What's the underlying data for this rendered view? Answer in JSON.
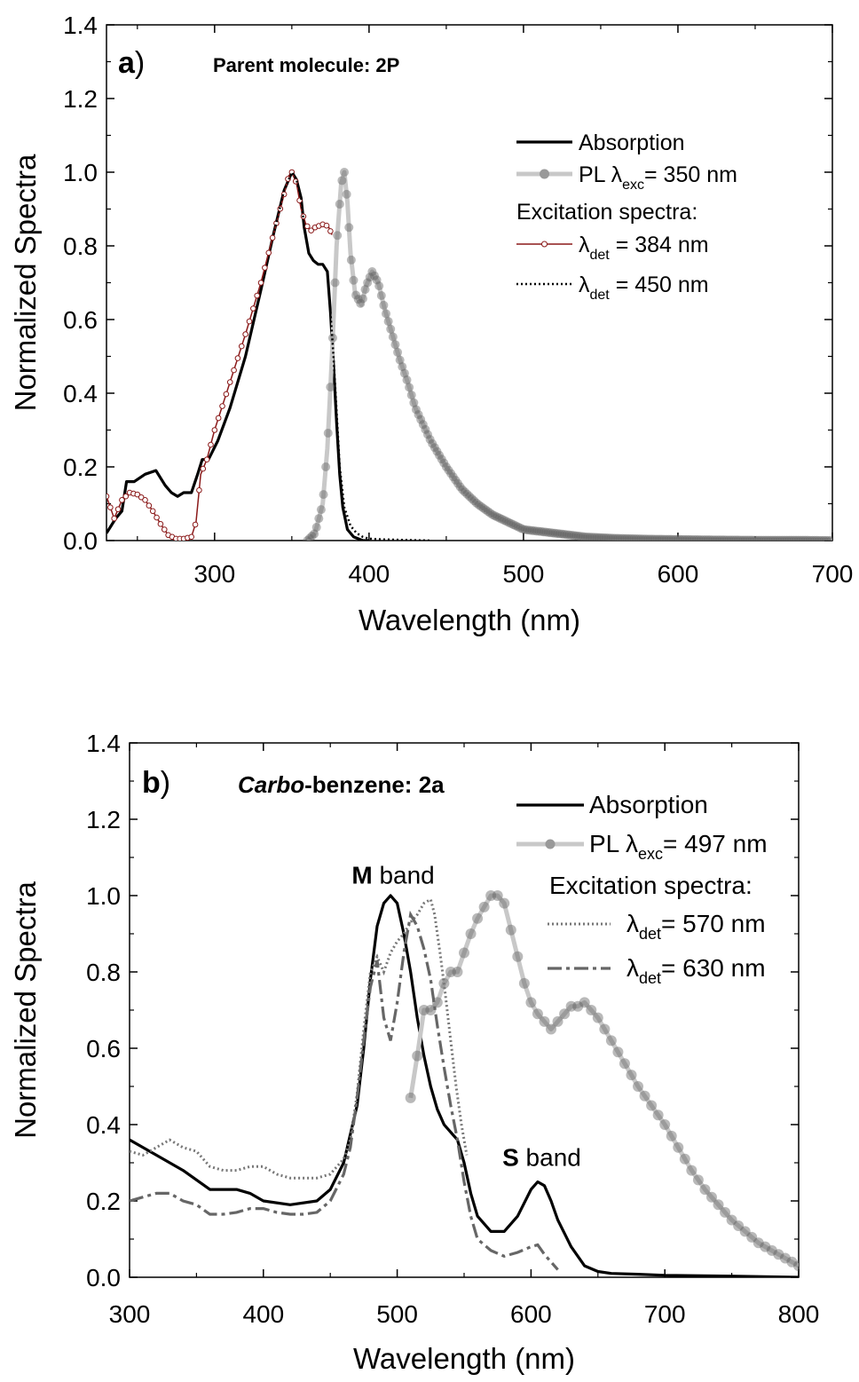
{
  "chart_data": [
    {
      "type": "line",
      "panel_label": "a",
      "subtitle": "Parent molecule: 2P",
      "xlabel": "Wavelength (nm)",
      "ylabel": "Normalized Spectra",
      "xlim": [
        230,
        700
      ],
      "ylim": [
        0,
        1.4
      ],
      "x_ticks": [
        "300",
        "400",
        "500",
        "600",
        "700"
      ],
      "y_ticks": [
        "0.0",
        "0.2",
        "0.4",
        "0.6",
        "0.8",
        "1.0",
        "1.2",
        "1.4"
      ],
      "legend_position": "top-right",
      "legend_heading": "Excitation spectra:",
      "series": [
        {
          "name": "Absorption",
          "style": "solid-black",
          "x": [
            230,
            236,
            240,
            243,
            248,
            255,
            262,
            268,
            272,
            276,
            280,
            285,
            289,
            292,
            296,
            302,
            310,
            320,
            330,
            338,
            345,
            350,
            353,
            356,
            358,
            361,
            364,
            367,
            370,
            373,
            375,
            377,
            379,
            381,
            383,
            386,
            390,
            396,
            400
          ],
          "y": [
            0.02,
            0.06,
            0.08,
            0.16,
            0.16,
            0.18,
            0.19,
            0.15,
            0.13,
            0.12,
            0.13,
            0.13,
            0.18,
            0.22,
            0.22,
            0.27,
            0.36,
            0.5,
            0.68,
            0.83,
            0.95,
            1.0,
            0.98,
            0.93,
            0.85,
            0.78,
            0.76,
            0.75,
            0.75,
            0.73,
            0.62,
            0.48,
            0.32,
            0.18,
            0.09,
            0.03,
            0.01,
            0.0,
            0.0
          ]
        },
        {
          "name": "PL",
          "label_prefix": "PL ",
          "label_lambda": "λ",
          "label_sub": "exc",
          "label_suffix": "= 350 nm",
          "style": "grey-dots",
          "x": [
            360,
            365,
            370,
            373,
            376,
            379,
            382,
            384,
            386,
            388,
            391,
            395,
            398,
            402,
            406,
            410,
            415,
            420,
            425,
            430,
            440,
            450,
            460,
            470,
            480,
            490,
            500,
            510,
            520,
            530,
            540,
            550,
            560,
            580,
            600,
            620,
            650,
            680,
            700
          ],
          "y": [
            0.0,
            0.02,
            0.1,
            0.25,
            0.5,
            0.8,
            0.97,
            1.0,
            0.92,
            0.78,
            0.67,
            0.64,
            0.69,
            0.73,
            0.7,
            0.63,
            0.56,
            0.49,
            0.43,
            0.36,
            0.27,
            0.2,
            0.14,
            0.1,
            0.07,
            0.05,
            0.03,
            0.025,
            0.02,
            0.015,
            0.01,
            0.008,
            0.006,
            0.004,
            0.003,
            0.002,
            0.001,
            0.001,
            0.0
          ]
        },
        {
          "name": "λdet = 384 nm",
          "label_lambda": "λ",
          "label_sub": "det",
          "label_suffix": " = 384 nm",
          "style": "red-line-open-circles",
          "x": [
            230,
            235,
            240,
            245,
            250,
            255,
            260,
            265,
            270,
            275,
            280,
            285,
            288,
            291,
            295,
            300,
            310,
            320,
            330,
            338,
            345,
            348,
            350,
            353,
            356,
            359,
            362,
            365,
            368,
            371,
            374,
            376
          ],
          "y": [
            0.12,
            0.06,
            0.11,
            0.13,
            0.125,
            0.11,
            0.08,
            0.045,
            0.015,
            0.005,
            0.005,
            0.01,
            0.05,
            0.18,
            0.22,
            0.3,
            0.43,
            0.56,
            0.7,
            0.83,
            0.94,
            0.99,
            1.0,
            0.97,
            0.9,
            0.86,
            0.84,
            0.85,
            0.855,
            0.86,
            0.85,
            0.83
          ]
        },
        {
          "name": "λdet = 450 nm",
          "label_lambda": "λ",
          "label_sub": "det",
          "label_suffix": " = 450 nm",
          "style": "dotted-black",
          "x": [
            338,
            345,
            350,
            353,
            356,
            358,
            361,
            364,
            367,
            370,
            373,
            375,
            377,
            379,
            381,
            384,
            388,
            392,
            396,
            400,
            410,
            420,
            430,
            440
          ],
          "y": [
            0.83,
            0.95,
            1.0,
            0.98,
            0.93,
            0.85,
            0.78,
            0.76,
            0.75,
            0.75,
            0.73,
            0.62,
            0.5,
            0.35,
            0.2,
            0.09,
            0.04,
            0.02,
            0.01,
            0.005,
            0.003,
            0.002,
            0.001,
            0.0
          ]
        }
      ]
    },
    {
      "type": "line",
      "panel_label": "b",
      "subtitle_italic": "Carbo",
      "subtitle_rest": "-benzene: 2a",
      "xlabel": "Wavelength (nm)",
      "ylabel": "Normalized Spectra",
      "xlim": [
        300,
        800
      ],
      "ylim": [
        0,
        1.4
      ],
      "x_ticks": [
        "300",
        "400",
        "500",
        "600",
        "700",
        "800"
      ],
      "y_ticks": [
        "0.0",
        "0.2",
        "0.4",
        "0.6",
        "0.8",
        "1.0",
        "1.2",
        "1.4"
      ],
      "legend_position": "top-right",
      "legend_heading": "Excitation spectra:",
      "annotations": [
        {
          "bold": "M",
          "rest": " band",
          "x": 497,
          "y": 1.05
        },
        {
          "bold": "S",
          "rest": " band",
          "x": 608,
          "y": 0.31
        }
      ],
      "series": [
        {
          "name": "Absorption",
          "style": "solid-black",
          "x": [
            300,
            320,
            340,
            360,
            380,
            390,
            400,
            420,
            440,
            450,
            460,
            470,
            475,
            480,
            485,
            490,
            495,
            500,
            505,
            510,
            515,
            520,
            525,
            530,
            535,
            540,
            545,
            550,
            555,
            560,
            570,
            580,
            590,
            600,
            605,
            610,
            615,
            620,
            630,
            640,
            650,
            660,
            680,
            700,
            750,
            800
          ],
          "y": [
            0.36,
            0.32,
            0.28,
            0.23,
            0.23,
            0.22,
            0.2,
            0.19,
            0.2,
            0.23,
            0.3,
            0.45,
            0.6,
            0.78,
            0.92,
            0.98,
            1.0,
            0.98,
            0.9,
            0.8,
            0.68,
            0.58,
            0.5,
            0.44,
            0.4,
            0.38,
            0.36,
            0.3,
            0.22,
            0.16,
            0.12,
            0.12,
            0.16,
            0.23,
            0.25,
            0.24,
            0.2,
            0.15,
            0.08,
            0.03,
            0.015,
            0.01,
            0.008,
            0.005,
            0.003,
            0.0
          ]
        },
        {
          "name": "PL",
          "label_prefix": "PL ",
          "label_lambda": "λ",
          "label_sub": "exc",
          "label_suffix": "= 497 nm",
          "style": "grey-dots",
          "x": [
            510,
            515,
            520,
            525,
            530,
            535,
            540,
            545,
            550,
            555,
            560,
            565,
            570,
            575,
            580,
            585,
            590,
            595,
            600,
            605,
            610,
            615,
            620,
            625,
            630,
            635,
            640,
            645,
            650,
            660,
            670,
            680,
            690,
            700,
            710,
            720,
            730,
            740,
            750,
            760,
            770,
            780,
            790,
            800
          ],
          "y": [
            0.47,
            0.58,
            0.7,
            0.7,
            0.72,
            0.77,
            0.8,
            0.8,
            0.85,
            0.9,
            0.94,
            0.97,
            1.0,
            1.0,
            0.98,
            0.91,
            0.84,
            0.77,
            0.72,
            0.69,
            0.67,
            0.65,
            0.67,
            0.69,
            0.71,
            0.71,
            0.72,
            0.7,
            0.68,
            0.62,
            0.56,
            0.5,
            0.45,
            0.4,
            0.34,
            0.28,
            0.23,
            0.19,
            0.15,
            0.12,
            0.09,
            0.07,
            0.05,
            0.03
          ]
        },
        {
          "name": "λdet= 570 nm",
          "label_lambda": "λ",
          "label_sub": "det",
          "label_suffix": "= 570 nm",
          "style": "grey-dotted",
          "x": [
            300,
            310,
            320,
            330,
            340,
            350,
            360,
            370,
            380,
            390,
            400,
            410,
            420,
            430,
            440,
            450,
            460,
            465,
            470,
            475,
            480,
            485,
            490,
            495,
            500,
            505,
            510,
            515,
            520,
            525,
            528,
            532,
            536,
            540,
            544,
            548,
            552
          ],
          "y": [
            0.33,
            0.32,
            0.34,
            0.36,
            0.34,
            0.33,
            0.29,
            0.28,
            0.28,
            0.29,
            0.29,
            0.27,
            0.26,
            0.26,
            0.26,
            0.27,
            0.31,
            0.36,
            0.48,
            0.65,
            0.8,
            0.84,
            0.8,
            0.85,
            0.88,
            0.9,
            0.93,
            0.95,
            0.98,
            0.99,
            0.95,
            0.85,
            0.74,
            0.62,
            0.5,
            0.4,
            0.32
          ]
        },
        {
          "name": "λdet= 630 nm",
          "label_lambda": "λ",
          "label_sub": "det",
          "label_suffix": "= 630 nm",
          "style": "grey-dashdot",
          "x": [
            300,
            310,
            320,
            330,
            340,
            350,
            360,
            370,
            380,
            390,
            400,
            410,
            420,
            430,
            440,
            450,
            460,
            465,
            470,
            475,
            480,
            485,
            490,
            495,
            500,
            505,
            510,
            515,
            520,
            525,
            530,
            535,
            540,
            545,
            550,
            555,
            560,
            570,
            580,
            590,
            600,
            605,
            610,
            615,
            620
          ],
          "y": [
            0.2,
            0.21,
            0.22,
            0.22,
            0.2,
            0.19,
            0.165,
            0.165,
            0.17,
            0.18,
            0.18,
            0.17,
            0.165,
            0.165,
            0.17,
            0.2,
            0.27,
            0.34,
            0.47,
            0.62,
            0.76,
            0.83,
            0.68,
            0.62,
            0.72,
            0.85,
            0.95,
            0.92,
            0.86,
            0.78,
            0.66,
            0.55,
            0.45,
            0.36,
            0.25,
            0.16,
            0.1,
            0.07,
            0.055,
            0.065,
            0.08,
            0.085,
            0.06,
            0.04,
            0.02
          ]
        }
      ]
    }
  ]
}
